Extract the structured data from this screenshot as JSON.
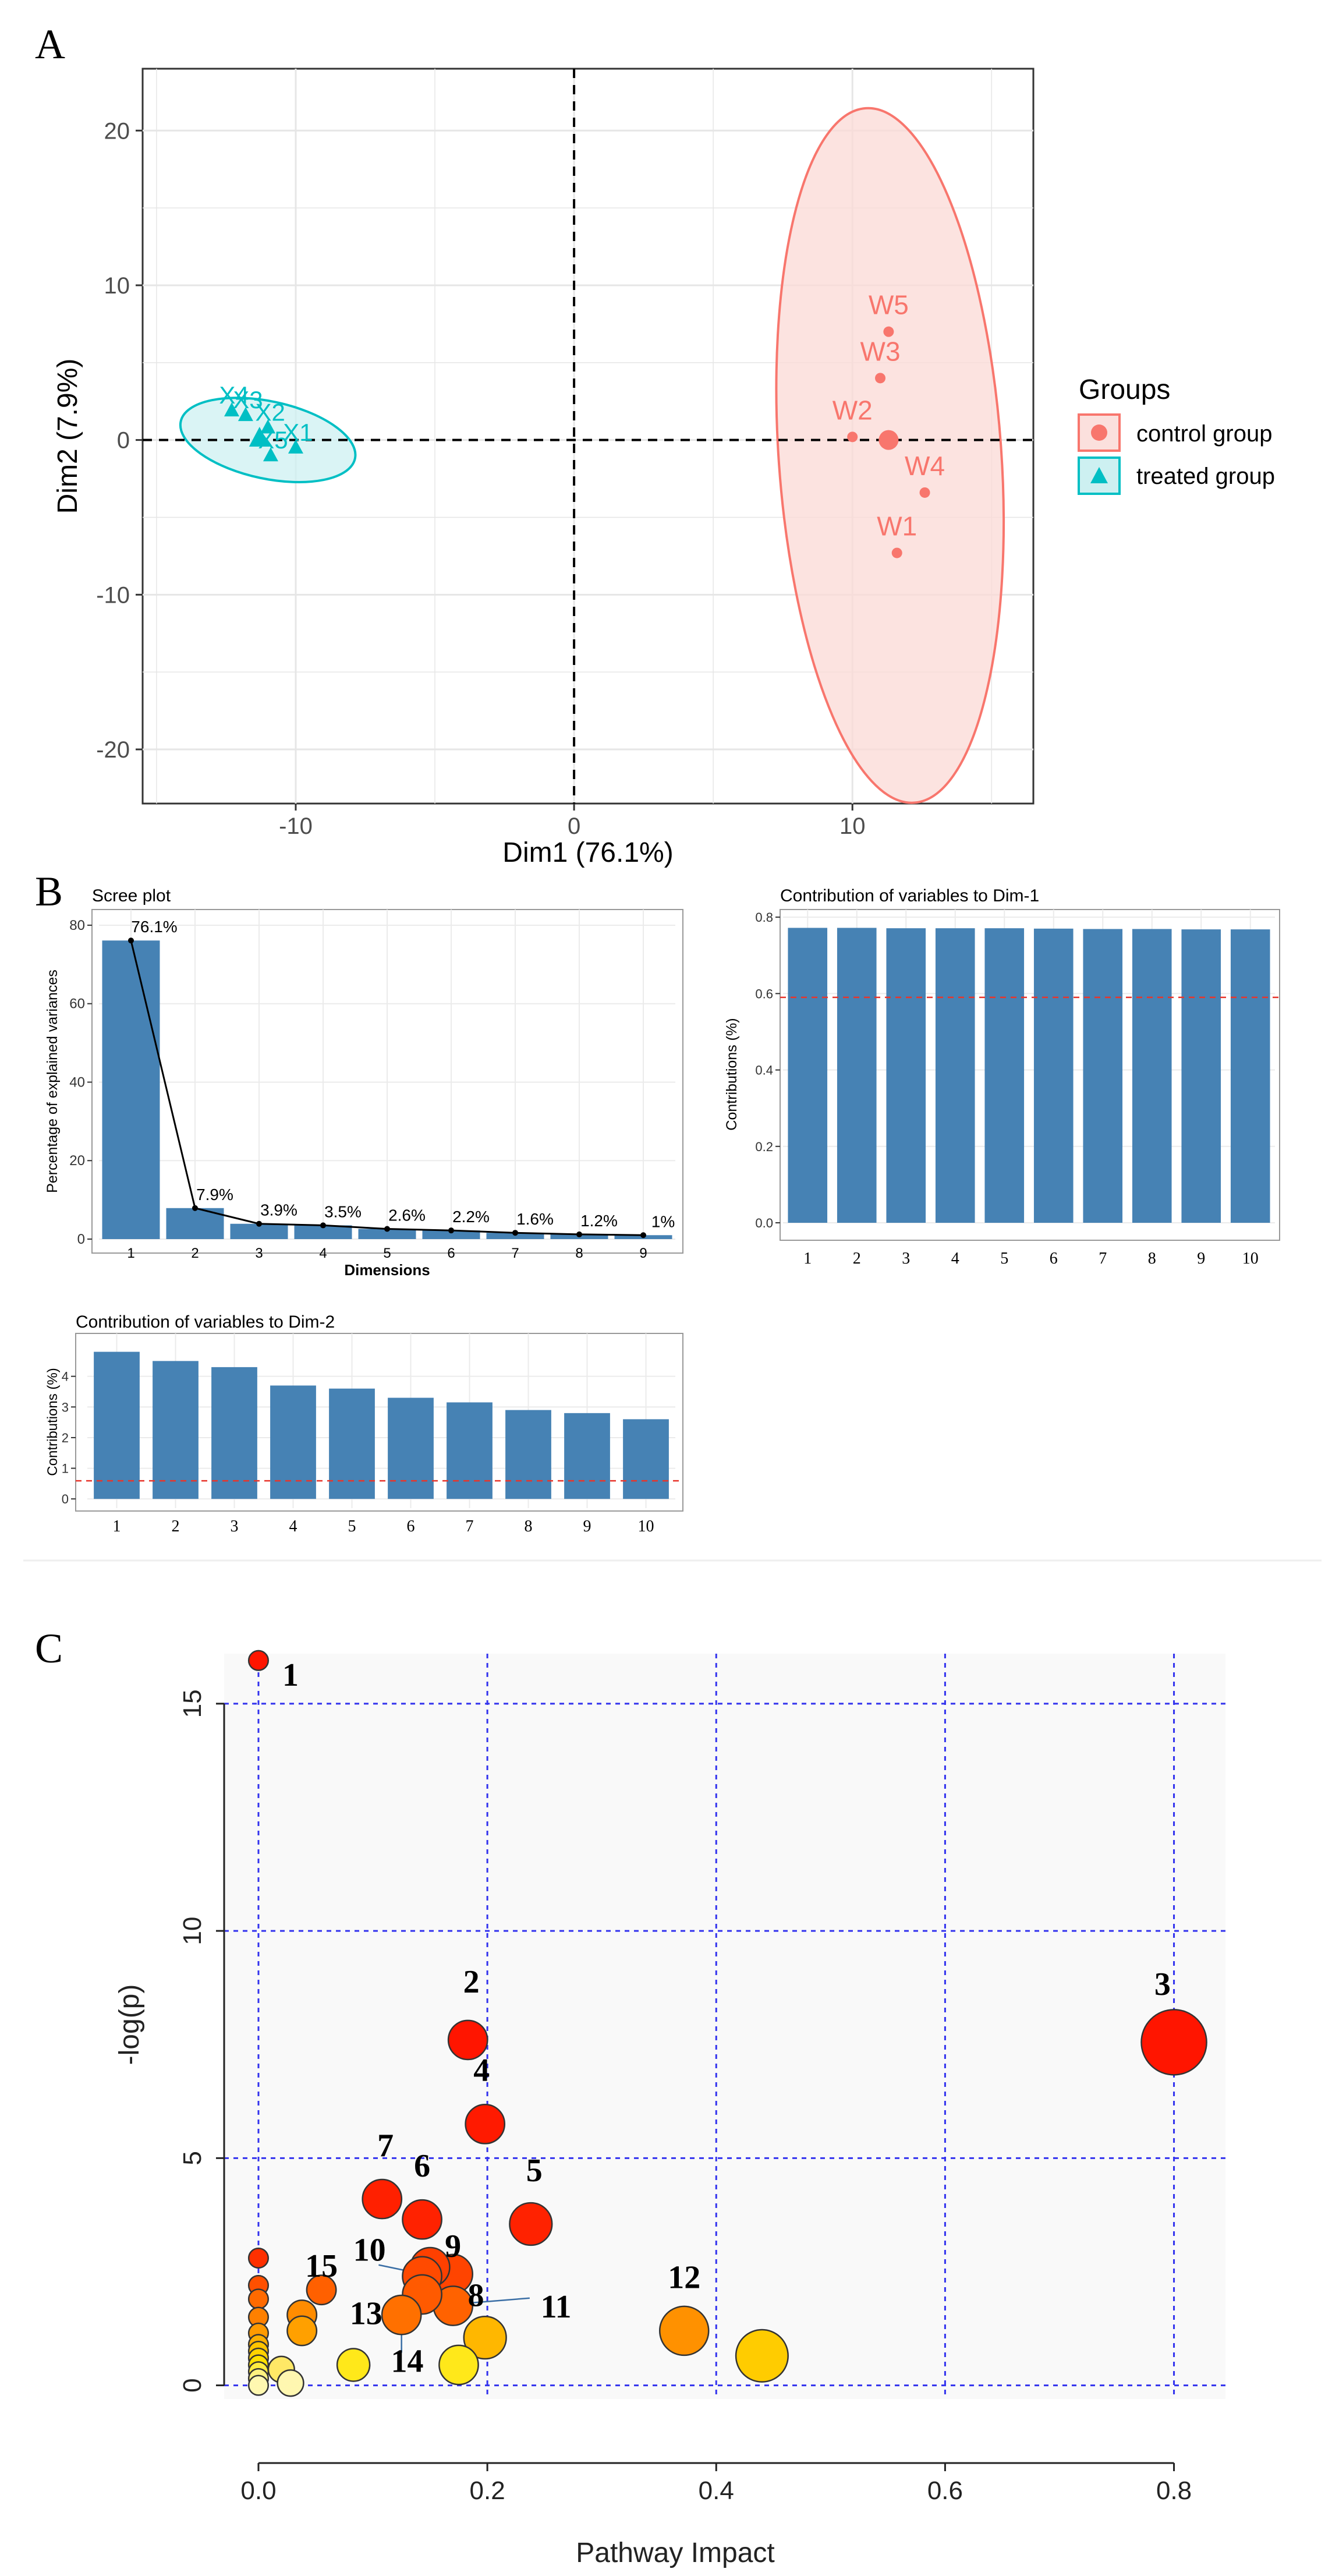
{
  "panel_labels": {
    "a": "A",
    "b": "B",
    "c": "C"
  },
  "chart_data": [
    {
      "id": "pca",
      "type": "scatter",
      "xlabel": "Dim1 (76.1%)",
      "ylabel": "Dim2 (7.9%)",
      "xlim": [
        -15.5,
        16.5
      ],
      "ylim": [
        -23.5,
        24
      ],
      "xticks": [
        -10,
        0,
        10
      ],
      "yticks": [
        -20,
        -10,
        0,
        10,
        20
      ],
      "legend": {
        "title": "Groups",
        "position": "right",
        "items": [
          {
            "label": "control group",
            "color": "#f8766d"
          },
          {
            "label": "treated group",
            "color": "#00bfc4"
          }
        ]
      },
      "series": [
        {
          "name": "control group",
          "color": "#f8766d",
          "marker": "circle",
          "centroid": [
            11.3,
            0
          ],
          "ellipse": {
            "cx": 11.35,
            "cy": -1,
            "rx": 4.0,
            "ry": 22.5,
            "rotation_deg": -4
          },
          "points": [
            {
              "label": "W5",
              "x": 11.3,
              "y": 7.0
            },
            {
              "label": "W3",
              "x": 11.0,
              "y": 4.0
            },
            {
              "label": "W2",
              "x": 10.0,
              "y": 0.2
            },
            {
              "label": "W4",
              "x": 12.6,
              "y": -3.4
            },
            {
              "label": "W1",
              "x": 11.6,
              "y": -7.3
            }
          ]
        },
        {
          "name": "treated group",
          "color": "#00bfc4",
          "marker": "triangle",
          "centroid": [
            -11.3,
            0.1
          ],
          "ellipse": {
            "cx": -11.0,
            "cy": 0,
            "rx": 3.2,
            "ry": 2.5,
            "rotation_deg": 12
          },
          "points": [
            {
              "label": "X1",
              "x": -10.0,
              "y": -0.5
            },
            {
              "label": "X2",
              "x": -11.0,
              "y": 0.8
            },
            {
              "label": "X3",
              "x": -11.8,
              "y": 1.6
            },
            {
              "label": "X4",
              "x": -12.3,
              "y": 1.9
            },
            {
              "label": "X5",
              "x": -10.9,
              "y": -1.0
            }
          ]
        }
      ]
    },
    {
      "id": "scree",
      "type": "bar",
      "title": "Scree plot",
      "xlabel": "Dimensions",
      "ylabel": "Percentage of explained variances",
      "ylim": [
        0,
        84
      ],
      "yticks": [
        0,
        20,
        40,
        60,
        80
      ],
      "categories": [
        "1",
        "2",
        "3",
        "4",
        "5",
        "6",
        "7",
        "8",
        "9"
      ],
      "values": [
        76.1,
        7.9,
        3.9,
        3.5,
        2.6,
        2.2,
        1.6,
        1.2,
        1.0
      ],
      "value_labels": [
        "76.1%",
        "7.9%",
        "3.9%",
        "3.5%",
        "2.6%",
        "2.2%",
        "1.6%",
        "1.2%",
        "1%"
      ],
      "color": "#4682b4"
    },
    {
      "id": "dim1",
      "type": "bar",
      "title": "Contribution of variables to Dim-1",
      "ylabel": "Contributions (%)",
      "ylim": [
        0,
        0.82
      ],
      "yticks": [
        0.0,
        0.2,
        0.4,
        0.6,
        0.8
      ],
      "ytick_labels": [
        "0.0",
        "0.2",
        "0.4",
        "0.6",
        "0.8"
      ],
      "categories": [
        "1",
        "2",
        "3",
        "4",
        "5",
        "6",
        "7",
        "8",
        "9",
        "10"
      ],
      "values": [
        0.772,
        0.772,
        0.771,
        0.771,
        0.771,
        0.77,
        0.769,
        0.769,
        0.768,
        0.768
      ],
      "reference_line": 0.59,
      "color": "#4682b4"
    },
    {
      "id": "dim2",
      "type": "bar",
      "title": "Contribution of variables to Dim-2",
      "ylabel": "Contributions (%)",
      "ylim": [
        -0.3,
        5.4
      ],
      "yticks": [
        0,
        1,
        2,
        3,
        4
      ],
      "categories": [
        "1",
        "2",
        "3",
        "4",
        "5",
        "6",
        "7",
        "8",
        "9",
        "10"
      ],
      "values": [
        4.8,
        4.5,
        4.3,
        3.7,
        3.6,
        3.3,
        3.15,
        2.9,
        2.8,
        2.6
      ],
      "reference_line": 0.59,
      "color": "#4682b4"
    },
    {
      "id": "pathway",
      "type": "scatter",
      "xlabel": "Pathway Impact",
      "ylabel": "-log(p)",
      "xlim": [
        -0.03,
        0.845
      ],
      "ylim": [
        -0.3,
        16.1
      ],
      "xticks": [
        0.0,
        0.2,
        0.4,
        0.6,
        0.8
      ],
      "xtick_labels": [
        "0.0",
        "0.2",
        "0.4",
        "0.6",
        "0.8"
      ],
      "yticks": [
        0,
        5,
        10,
        15
      ],
      "points": [
        {
          "label": "1",
          "x": 0.0,
          "y": 15.95,
          "r": 0.6,
          "color": "#ff1500"
        },
        {
          "label": "2",
          "x": 0.183,
          "y": 7.6,
          "r": 1.2,
          "color": "#ff1500"
        },
        {
          "label": "3",
          "x": 0.8,
          "y": 7.55,
          "r": 2.0,
          "color": "#ff1500"
        },
        {
          "label": "4",
          "x": 0.198,
          "y": 5.75,
          "r": 1.2,
          "color": "#ff1a00"
        },
        {
          "label": "5",
          "x": 0.238,
          "y": 3.55,
          "r": 1.3,
          "color": "#ff2200"
        },
        {
          "label": "6",
          "x": 0.143,
          "y": 3.65,
          "r": 1.2,
          "color": "#ff2200"
        },
        {
          "label": "7",
          "x": 0.108,
          "y": 4.1,
          "r": 1.2,
          "color": "#ff2000"
        },
        {
          "label": "8",
          "x": 0.17,
          "y": 2.45,
          "r": 1.2,
          "color": "#ff4400"
        },
        {
          "label": "9",
          "x": 0.15,
          "y": 2.6,
          "r": 1.2,
          "color": "#ff4000"
        },
        {
          "label": "10",
          "x": 0.143,
          "y": 2.4,
          "r": 1.2,
          "color": "#ff4a00"
        },
        {
          "label": "11",
          "x": 0.17,
          "y": 1.75,
          "r": 1.2,
          "color": "#ff6200"
        },
        {
          "label": "12",
          "x": 0.372,
          "y": 1.2,
          "r": 1.5,
          "color": "#ff9100"
        },
        {
          "label": "13",
          "x": 0.143,
          "y": 2.0,
          "r": 1.2,
          "color": "#ff5a00"
        },
        {
          "label": "14",
          "x": 0.125,
          "y": 1.55,
          "r": 1.2,
          "color": "#ff7000"
        },
        {
          "label": "15",
          "x": 0.055,
          "y": 2.1,
          "r": 0.9,
          "color": "#ff6000"
        },
        {
          "label": "",
          "x": 0.0,
          "y": 2.8,
          "r": 0.6,
          "color": "#ff3000"
        },
        {
          "label": "",
          "x": 0.0,
          "y": 2.2,
          "r": 0.6,
          "color": "#ff5000"
        },
        {
          "label": "",
          "x": 0.0,
          "y": 1.9,
          "r": 0.6,
          "color": "#ff6a00"
        },
        {
          "label": "",
          "x": 0.0,
          "y": 1.5,
          "r": 0.6,
          "color": "#ff8000"
        },
        {
          "label": "",
          "x": 0.0,
          "y": 1.15,
          "r": 0.6,
          "color": "#ff9a00"
        },
        {
          "label": "",
          "x": 0.0,
          "y": 0.9,
          "r": 0.6,
          "color": "#ffb000"
        },
        {
          "label": "",
          "x": 0.0,
          "y": 0.75,
          "r": 0.6,
          "color": "#ffc400"
        },
        {
          "label": "",
          "x": 0.0,
          "y": 0.6,
          "r": 0.6,
          "color": "#ffd200"
        },
        {
          "label": "",
          "x": 0.0,
          "y": 0.45,
          "r": 0.6,
          "color": "#ffe000"
        },
        {
          "label": "",
          "x": 0.0,
          "y": 0.3,
          "r": 0.6,
          "color": "#ffec40"
        },
        {
          "label": "",
          "x": 0.0,
          "y": 0.15,
          "r": 0.6,
          "color": "#fff280"
        },
        {
          "label": "",
          "x": 0.0,
          "y": 0.0,
          "r": 0.6,
          "color": "#fff8b0"
        },
        {
          "label": "",
          "x": 0.038,
          "y": 1.55,
          "r": 0.9,
          "color": "#ff8c00"
        },
        {
          "label": "",
          "x": 0.038,
          "y": 1.2,
          "r": 0.9,
          "color": "#ffa000"
        },
        {
          "label": "",
          "x": 0.02,
          "y": 0.35,
          "r": 0.8,
          "color": "#ffe866"
        },
        {
          "label": "",
          "x": 0.028,
          "y": 0.05,
          "r": 0.8,
          "color": "#fff7b0"
        },
        {
          "label": "",
          "x": 0.083,
          "y": 0.45,
          "r": 1.0,
          "color": "#ffe81a"
        },
        {
          "label": "",
          "x": 0.175,
          "y": 0.45,
          "r": 1.2,
          "color": "#ffe81a"
        },
        {
          "label": "",
          "x": 0.198,
          "y": 1.05,
          "r": 1.3,
          "color": "#ffb700"
        },
        {
          "label": "",
          "x": 0.44,
          "y": 0.65,
          "r": 1.6,
          "color": "#ffcc00"
        }
      ]
    }
  ]
}
